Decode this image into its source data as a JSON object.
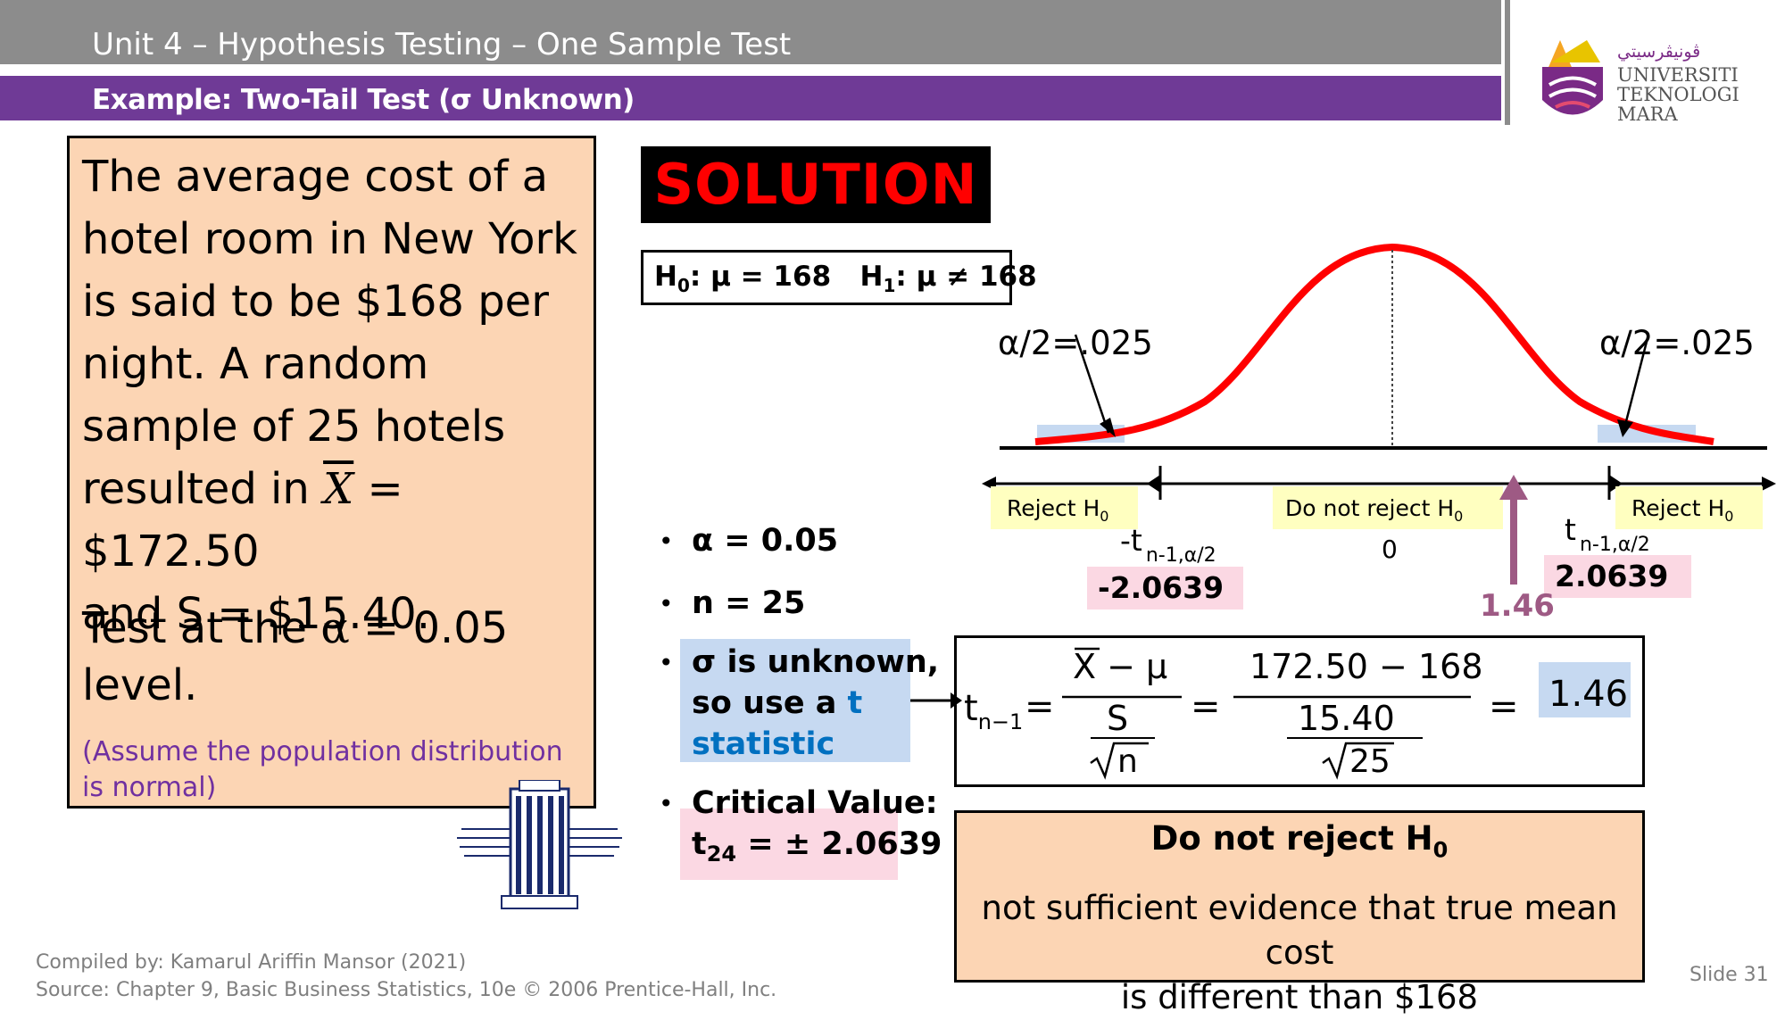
{
  "header": {
    "title": "Unit 4 – Hypothesis Testing – One Sample Test",
    "subtitle": "Example: Two-Tail Test (σ Unknown)"
  },
  "logo": {
    "jawi": "ڤونيڤرسيتي",
    "line1": "UNIVERSITI",
    "line2": "TEKNOLOGI",
    "line3": "MARA"
  },
  "problem": {
    "line1": "The average cost of a",
    "line2": "hotel room in New York",
    "line3": "is said to be $168 per",
    "line4": "night. A random",
    "line5": "sample of 25 hotels",
    "line6a": "resulted in ",
    "xbar": "X",
    "line6b": " = $172.50",
    "line7": "and S = $15.40.",
    "test1a": "Test at the ",
    "alpha_sym": "α",
    "test1b": " = 0.05",
    "test2": "level.",
    "assume": "(Assume the population distribution is normal)"
  },
  "solution": {
    "label": "SOLUTION",
    "h0": "H",
    "h0sub": "0",
    "h0rest": ": μ = 168",
    "h1": "H",
    "h1sub": "1",
    "h1rest": ": μ ≠ 168"
  },
  "bullets": {
    "alpha": "α = 0.05",
    "n": "n = 25",
    "sigma1": "σ is unknown,",
    "sigma2a": "so use a ",
    "sigma2b": "t",
    "sigma3": "statistic",
    "crit1": "Critical Value:",
    "crit_t": "t",
    "crit_sub": "24",
    "crit_rest": " = ± 2.0639"
  },
  "chart_data": {
    "type": "diagram",
    "left_tail": "α/2=.025",
    "right_tail": "α/2=.025",
    "reject_left": "Reject H",
    "reject_right": "Reject H",
    "do_not_reject": "Do not reject H",
    "sub0": "0",
    "neg_t": "-t",
    "pos_t": "t",
    "t_sub": "n-1,α/2",
    "zero": "0",
    "neg_crit": "-2.0639",
    "pos_crit": "2.0639",
    "test_stat": "1.46",
    "colors": {
      "curve": "#ff0000",
      "tail": "#c6d9f1",
      "reject": "#ffffc0",
      "crit": "#fbd8e3",
      "arrow": "#9e5a84"
    }
  },
  "formula": {
    "t": "t",
    "t_sub": "n−1",
    "eq": "=",
    "num1": "X − μ",
    "den1": "S",
    "root_n": "n",
    "num2": "172.50 − 168",
    "den2": "15.40",
    "root_25": "25",
    "result": "1.46"
  },
  "decision": {
    "title": "Do not reject H",
    "title_sub": "0",
    "line1": "not sufficient evidence that true mean cost",
    "line2": "is different than $168"
  },
  "footer": {
    "line1": "Compiled by: Kamarul Ariffin Mansor (2021)",
    "line2": "Source: Chapter 9, Basic Business Statistics, 10e © 2006 Prentice-Hall, Inc.",
    "slide": "Slide 31"
  }
}
